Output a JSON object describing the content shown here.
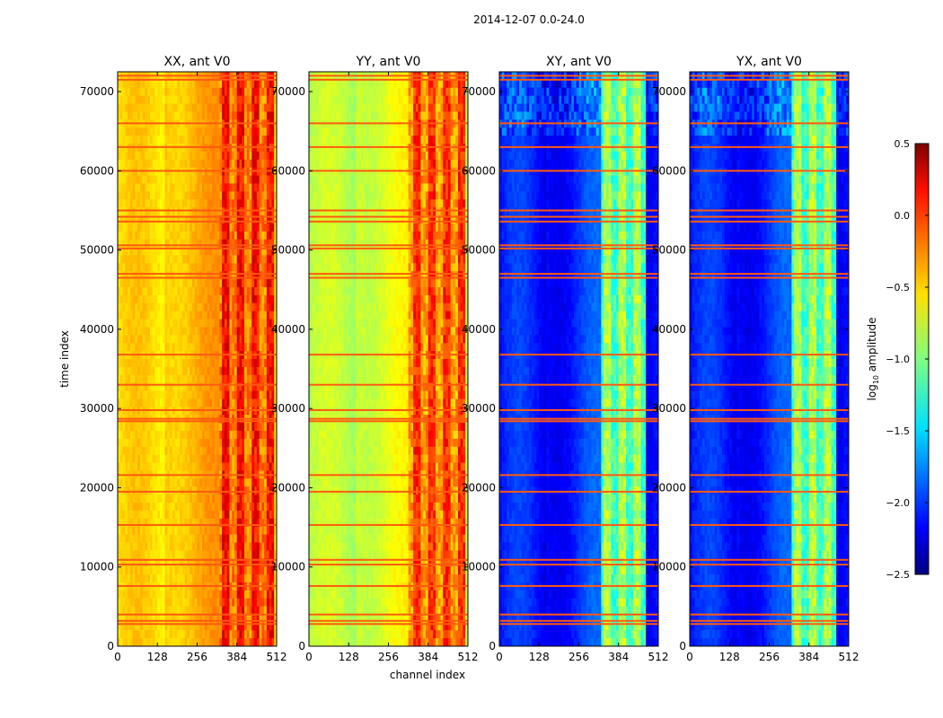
{
  "figure": {
    "suptitle": "2014-12-07 0.0-24.0",
    "ylabel": "time index",
    "xlabel": "channel index"
  },
  "colorbar": {
    "label_prefix": "log",
    "label_sub": "10",
    "label_suffix": " amplitude",
    "min": -2.5,
    "max": 0.5,
    "colormap": "jet",
    "ticks": [
      -2.5,
      -2.0,
      -1.5,
      -1.0,
      -0.5,
      0.0,
      0.5
    ],
    "tick_labels": [
      "−2.5",
      "−2.0",
      "−1.5",
      "−1.0",
      "−0.5",
      "0.0",
      "0.5"
    ]
  },
  "chart_data": {
    "type": "heatmap",
    "x_range": [
      0,
      512
    ],
    "y_range": [
      0,
      72500
    ],
    "x_ticks": [
      0,
      128,
      256,
      384,
      512
    ],
    "y_ticks": [
      0,
      10000,
      20000,
      30000,
      40000,
      50000,
      60000,
      70000
    ],
    "x_tick_labels": [
      "0",
      "128",
      "256",
      "384",
      "512"
    ],
    "y_tick_labels": [
      "0",
      "10000",
      "20000",
      "30000",
      "40000",
      "50000",
      "60000",
      "70000"
    ],
    "flagged_rows_time_index": [
      2800,
      3200,
      4000,
      7600,
      10300,
      10900,
      15300,
      19500,
      21600,
      28400,
      28700,
      29800,
      33000,
      36800,
      46500,
      47000,
      50200,
      50600,
      53600,
      54200,
      55000,
      60000,
      63000,
      66000,
      71500,
      72000
    ],
    "panels": [
      {
        "title": "XX, ant V0",
        "baseline_log10_amp": -0.55,
        "band_channels": [
          330,
          500
        ],
        "band_log10_amp": -0.05
      },
      {
        "title": "YY, ant V0",
        "baseline_log10_amp": -0.85,
        "band_channels": [
          320,
          500
        ],
        "band_log10_amp": -0.15
      },
      {
        "title": "XY, ant V0",
        "baseline_log10_amp": -2.1,
        "band_channels": [
          330,
          470
        ],
        "band_log10_amp": -1.0
      },
      {
        "title": "YX, ant V0",
        "baseline_log10_amp": -2.1,
        "band_channels": [
          330,
          470
        ],
        "band_log10_amp": -1.0
      }
    ]
  }
}
